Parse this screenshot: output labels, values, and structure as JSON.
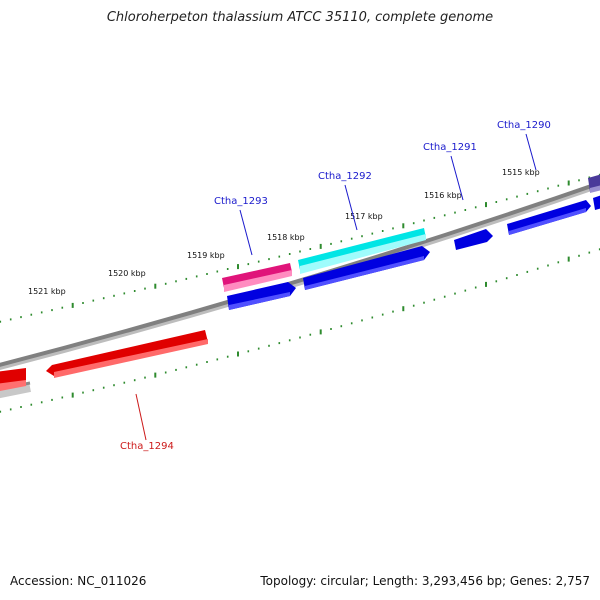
{
  "title": "Chloroherpeton thalassium ATCC 35110, complete genome",
  "footer": {
    "accession": "Accession: NC_011026",
    "topology": "Topology: circular; Length: 3,293,456 bp; Genes: 2,757"
  },
  "scale_labels": [
    "1515 kbp",
    "1516 kbp",
    "1517 kbp",
    "1518 kbp",
    "1519 kbp",
    "1520 kbp",
    "1521 kbp"
  ],
  "gene_labels": [
    {
      "name": "Ctha_1290",
      "color": "#1a1acc"
    },
    {
      "name": "Ctha_1291",
      "color": "#1a1acc"
    },
    {
      "name": "Ctha_1292",
      "color": "#1a1acc"
    },
    {
      "name": "Ctha_1293",
      "color": "#1a1acc"
    },
    {
      "name": "Ctha_1294",
      "color": "#cc1a1a"
    }
  ],
  "colors": {
    "forward_gene": "#0000e0",
    "reverse_gene": "#e00000",
    "highlight_cyan": "#00e5e5",
    "highlight_magenta": "#e0147a",
    "backbone": "#808080",
    "tick": "#2e8b2e"
  }
}
